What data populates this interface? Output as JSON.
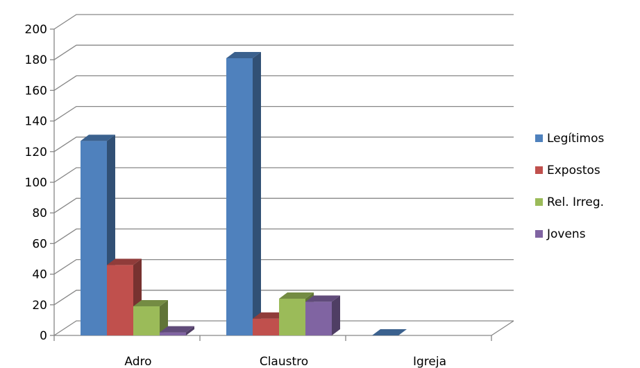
{
  "chart_data": {
    "type": "bar",
    "style": "3d-clustered-column",
    "categories": [
      "Adro",
      "Claustro",
      "Igreja"
    ],
    "series": [
      {
        "name": "Legítimos",
        "color": "#4F81BD",
        "values": [
          127,
          181,
          0
        ]
      },
      {
        "name": "Expostos",
        "color": "#C0504D",
        "values": [
          46,
          11,
          0
        ]
      },
      {
        "name": "Rel. Irreg.",
        "color": "#9BBB59",
        "values": [
          19,
          24,
          0
        ]
      },
      {
        "name": "Jovens",
        "color": "#8064A2",
        "values": [
          2,
          22,
          0
        ]
      }
    ],
    "ylim": [
      0,
      200
    ],
    "yticks": [
      0,
      20,
      40,
      60,
      80,
      100,
      120,
      140,
      160,
      180,
      200
    ],
    "grid": true,
    "legend_position": "right"
  }
}
